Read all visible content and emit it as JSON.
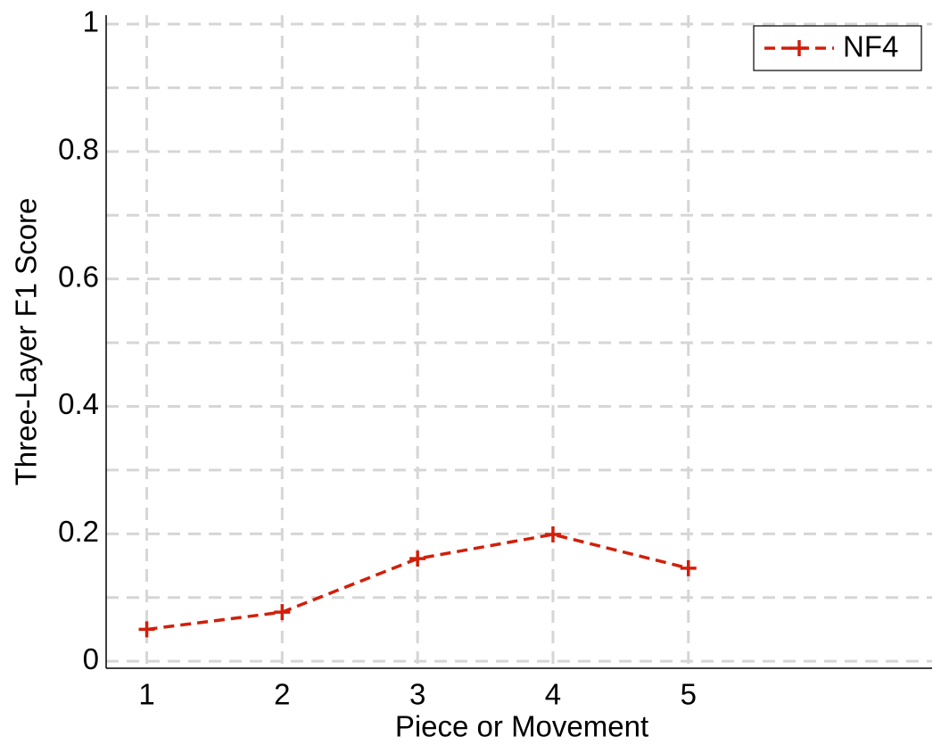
{
  "chart_data": {
    "type": "line",
    "x_label": "Piece or Movement",
    "y_label": "Three-Layer F1 Score",
    "x": [
      1,
      2,
      3,
      4,
      5
    ],
    "series": [
      {
        "name": "NF4",
        "color": "#d11f0a",
        "values": [
          0.05,
          0.077,
          0.161,
          0.199,
          0.146
        ]
      }
    ],
    "xlim": [
      0.7,
      6.8
    ],
    "xticks": [
      1,
      2,
      3,
      4,
      5
    ],
    "ylim": [
      -0.011,
      1.014
    ],
    "yticks": [
      0,
      0.2,
      0.4,
      0.6,
      0.8,
      1
    ],
    "yminorticks": [
      0.1,
      0.3,
      0.5,
      0.7,
      0.9
    ],
    "grid": true,
    "legend": "upper right"
  }
}
